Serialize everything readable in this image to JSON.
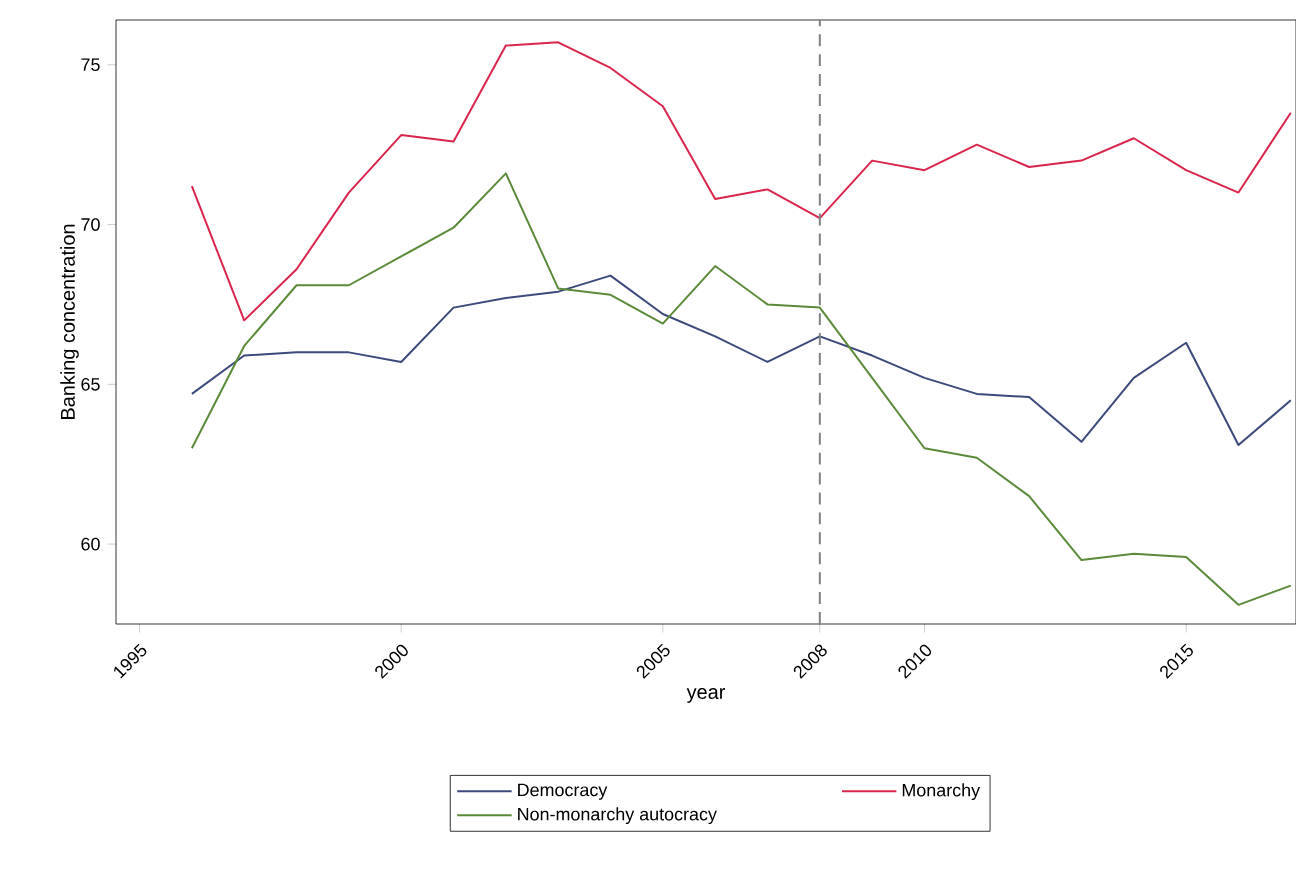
{
  "chart_data": {
    "type": "line",
    "xlabel": "year",
    "ylabel": "Banking concentration",
    "x": [
      1996,
      1997,
      1998,
      1999,
      2000,
      2001,
      2002,
      2003,
      2004,
      2005,
      2006,
      2007,
      2008,
      2009,
      2010,
      2011,
      2012,
      2013,
      2014,
      2015,
      2016,
      2017
    ],
    "series": [
      {
        "name": "Democracy",
        "color": "#3b4a7a",
        "values": [
          64.7,
          65.9,
          66.0,
          66.0,
          65.7,
          67.4,
          67.7,
          67.9,
          68.4,
          67.2,
          66.5,
          65.7,
          66.5,
          65.9,
          65.2,
          64.7,
          64.6,
          63.2,
          65.2,
          66.3,
          63.1,
          64.5
        ]
      },
      {
        "name": "Monarchy",
        "color": "#d9254c",
        "values": [
          71.2,
          67.0,
          68.6,
          71.0,
          72.8,
          72.6,
          75.6,
          75.7,
          74.9,
          73.7,
          70.8,
          71.1,
          70.2,
          72.0,
          71.7,
          72.5,
          71.8,
          72.0,
          72.7,
          71.7,
          71.0,
          73.5
        ]
      },
      {
        "name": "Non-monarchy autocracy",
        "color": "#5a8a3a",
        "values": [
          63.0,
          66.2,
          68.1,
          68.1,
          69.0,
          69.9,
          71.6,
          68.0,
          67.8,
          66.9,
          68.7,
          67.5,
          67.4,
          65.2,
          63.0,
          62.7,
          61.5,
          59.5,
          59.7,
          59.6,
          58.1,
          58.7
        ]
      }
    ],
    "xlim": [
      1994.55,
      2017.1
    ],
    "ylim": [
      57.5,
      76.4
    ],
    "xticks": [
      1995,
      2000,
      2005,
      2008,
      2010,
      2015
    ],
    "yticks": [
      60,
      65,
      70,
      75
    ],
    "ref_lines": [
      {
        "axis": "x",
        "value": 2008,
        "color": "#808080",
        "line_style": "dashed"
      }
    ],
    "grid": false,
    "legend": "bottom",
    "marker": "none",
    "line_style": "solid"
  }
}
